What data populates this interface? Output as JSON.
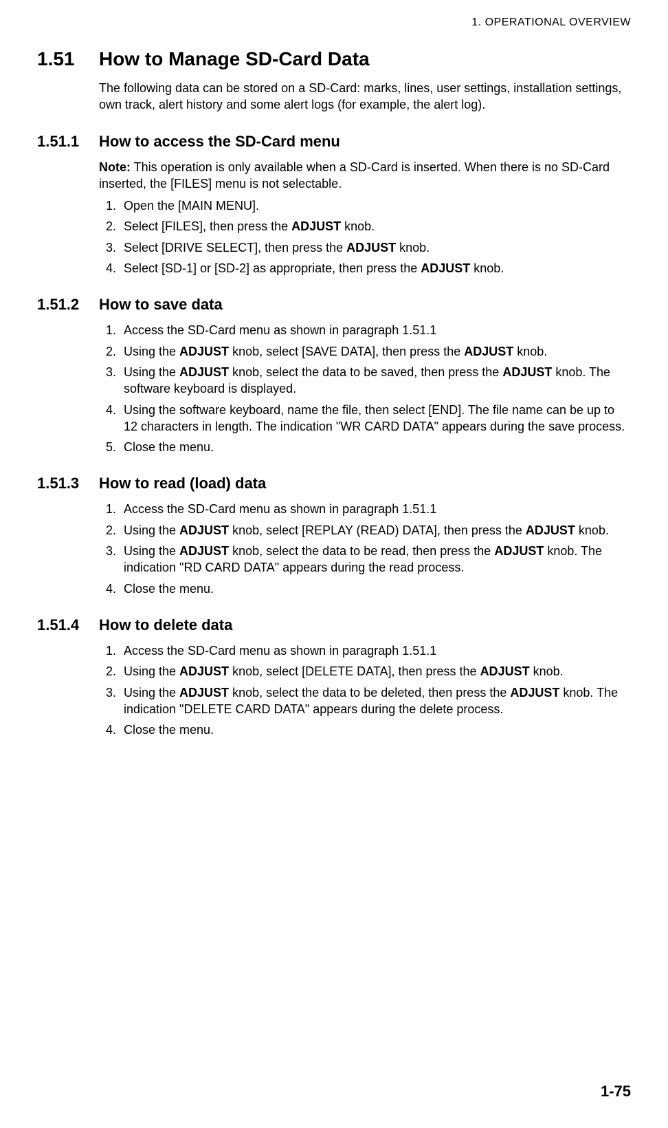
{
  "header": "1.  OPERATIONAL OVERVIEW",
  "s1": {
    "num": "1.51",
    "title": "How to Manage SD-Card Data",
    "intro": "The following data can be stored on a SD-Card: marks, lines, user settings, installation settings, own track, alert history and some alert logs (for example, the alert log)."
  },
  "s1_1": {
    "num": "1.51.1",
    "title": "How to access the SD-Card menu",
    "note_label": "Note:",
    "note_text": " This operation is only available when a SD-Card is inserted. When there is no SD-Card inserted, the [FILES] menu is not selectable.",
    "steps": {
      "i1": "Open the [MAIN MENU].",
      "i2a": "Select [FILES], then press the ",
      "i2b": "ADJUST",
      "i2c": " knob.",
      "i3a": "Select [DRIVE SELECT], then press the ",
      "i3b": "ADJUST",
      "i3c": " knob.",
      "i4a": "Select [SD-1] or [SD-2] as appropriate, then press the ",
      "i4b": "ADJUST",
      "i4c": " knob."
    }
  },
  "s1_2": {
    "num": "1.51.2",
    "title": "How to save data",
    "steps": {
      "i1": "Access the SD-Card menu as shown in paragraph 1.51.1",
      "i2a": "Using the ",
      "i2b": "ADJUST",
      "i2c": " knob, select [SAVE DATA], then press the ",
      "i2d": "ADJUST",
      "i2e": " knob.",
      "i3a": "Using the ",
      "i3b": "ADJUST",
      "i3c": " knob, select the data to be saved, then press the ",
      "i3d": "ADJUST",
      "i3e": " knob. The software keyboard is displayed.",
      "i4": "Using the software keyboard, name the file, then select [END]. The file name can be up to 12 characters in length. The indication \"WR CARD DATA\" appears during the save process.",
      "i5": "Close the menu."
    }
  },
  "s1_3": {
    "num": "1.51.3",
    "title": "How to read (load) data",
    "steps": {
      "i1": "Access the SD-Card menu as shown in paragraph 1.51.1",
      "i2a": "Using the ",
      "i2b": "ADJUST",
      "i2c": " knob, select [REPLAY (READ) DATA], then press the ",
      "i2d": "ADJUST",
      "i2e": " knob.",
      "i3a": "Using the ",
      "i3b": "ADJUST",
      "i3c": " knob, select the data to be read, then press the ",
      "i3d": "ADJUST",
      "i3e": " knob. The indication \"RD CARD DATA\" appears during the read process.",
      "i4": "Close the menu."
    }
  },
  "s1_4": {
    "num": "1.51.4",
    "title": "How to delete data",
    "steps": {
      "i1": "Access the SD-Card menu as shown in paragraph 1.51.1",
      "i2a": "Using the ",
      "i2b": "ADJUST",
      "i2c": " knob, select [DELETE DATA], then press the ",
      "i2d": "ADJUST",
      "i2e": " knob.",
      "i3a": "Using the ",
      "i3b": "ADJUST",
      "i3c": " knob, select the data to be deleted, then press the ",
      "i3d": "ADJUST",
      "i3e": " knob. The indication \"DELETE CARD DATA\" appears during the delete process.",
      "i4": "Close the menu."
    }
  },
  "page_number": "1-75"
}
